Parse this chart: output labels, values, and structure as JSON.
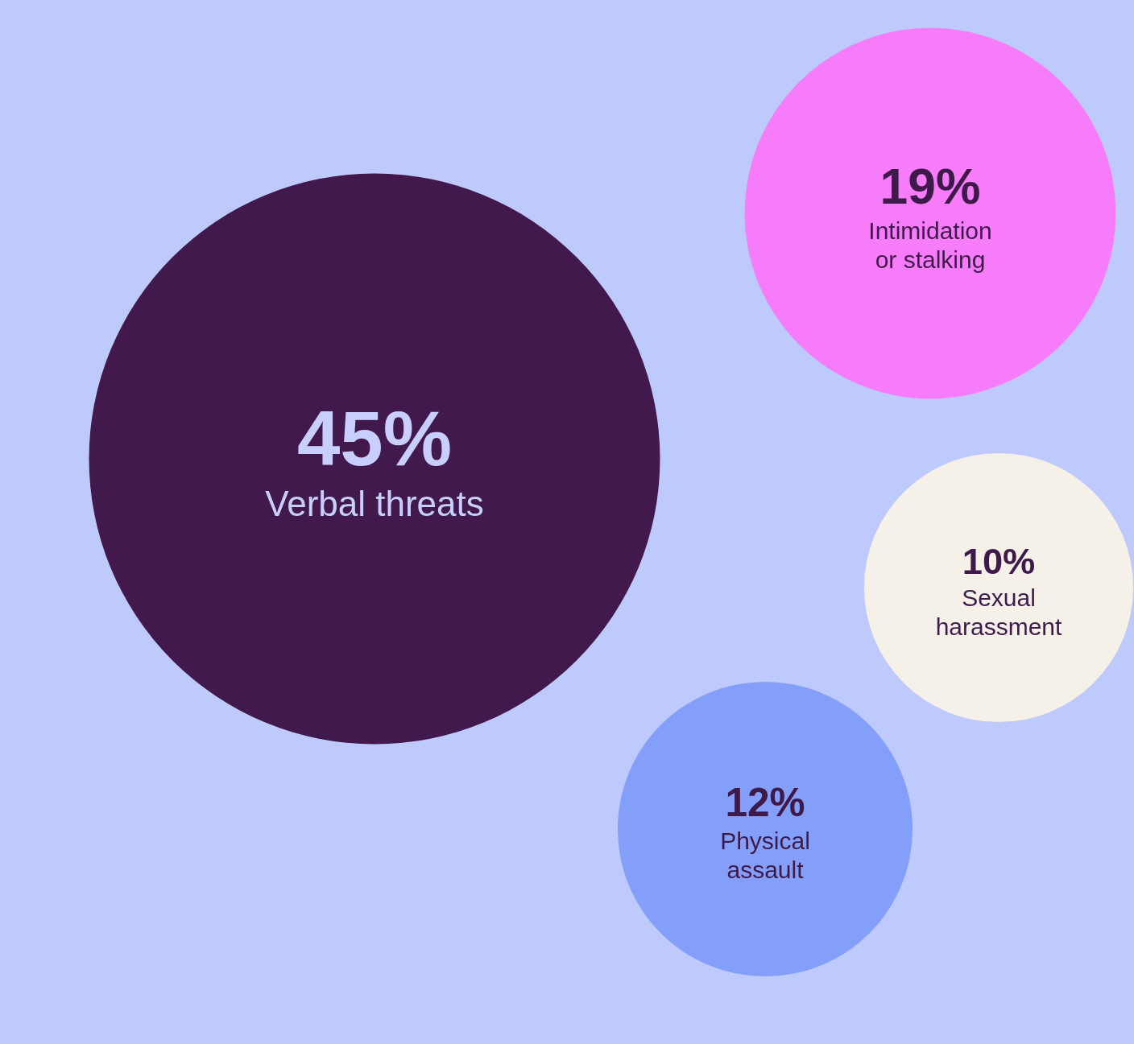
{
  "chart_data": {
    "type": "other",
    "categories": [
      "Verbal threats",
      "Intimidation or stalking",
      "Sexual harassment",
      "Physical assault"
    ],
    "values": [
      45,
      19,
      10,
      12
    ],
    "value_labels": [
      "45%",
      "19%",
      "10%",
      "12%"
    ],
    "colors": [
      "#41194d",
      "#f77cfa",
      "#f5f0e8",
      "#839ffa"
    ]
  }
}
